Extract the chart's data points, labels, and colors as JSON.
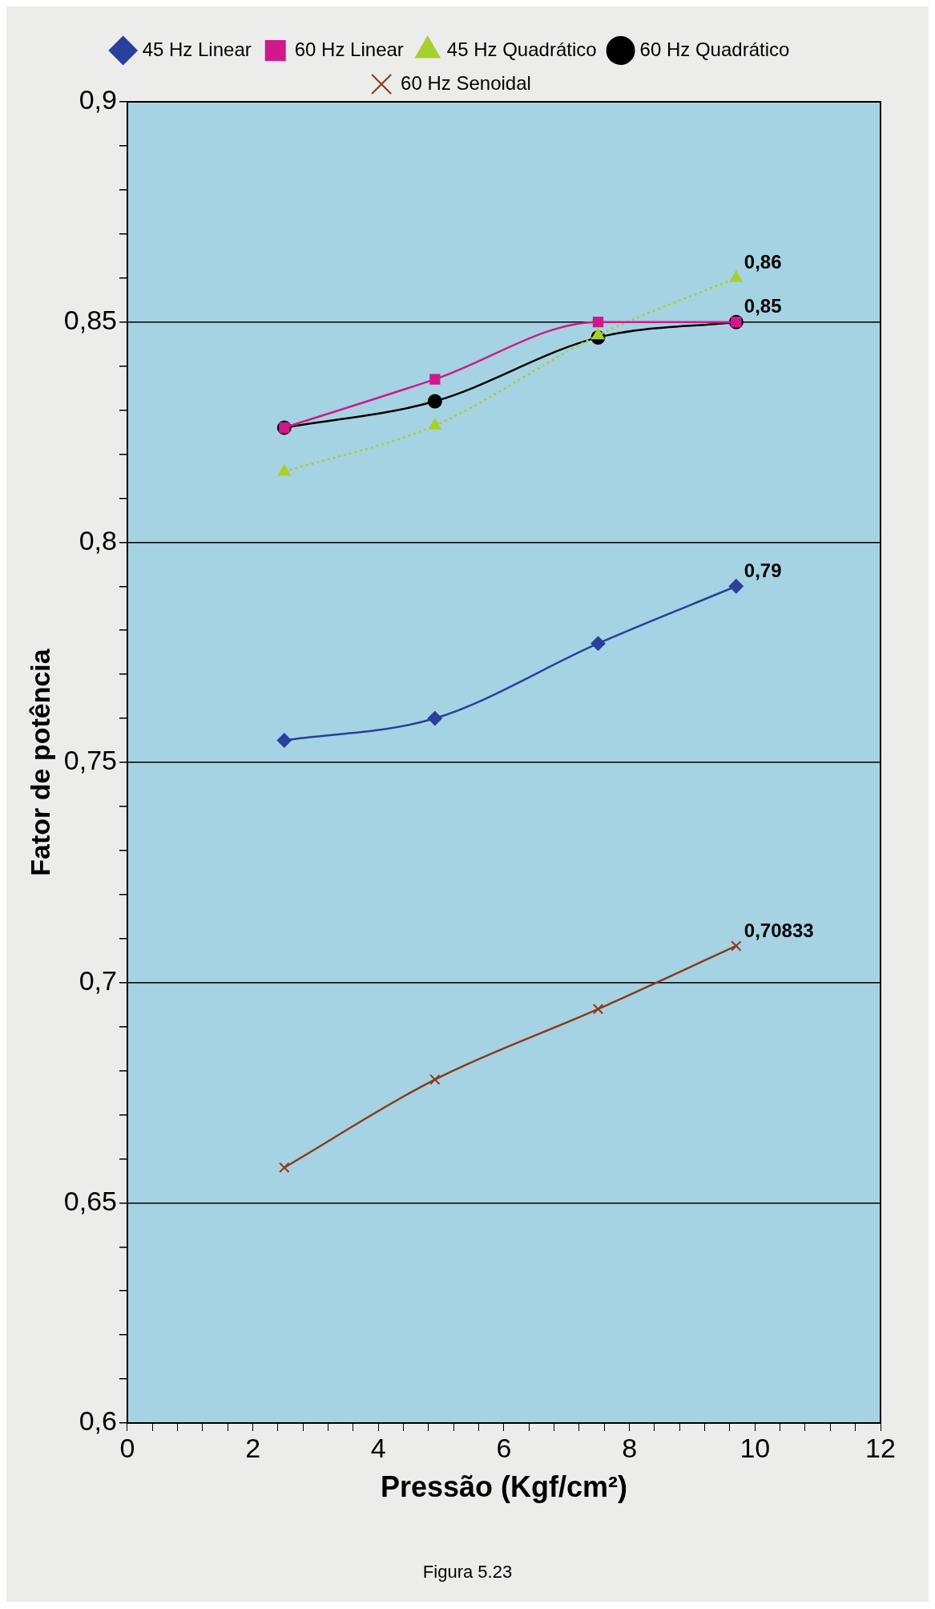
{
  "chart_data": {
    "type": "line",
    "xlabel": "Pressão (Kgf/cm²)",
    "ylabel": "Fator de potência",
    "x": [
      2.5,
      4.9,
      7.5,
      9.7
    ],
    "series": [
      {
        "name": "45 Hz Linear",
        "color": "#2b3f9c",
        "marker": "diamond",
        "line_style": "solid",
        "values": [
          0.755,
          0.76,
          0.777,
          0.79
        ],
        "value_labels": [
          null,
          null,
          null,
          "0,79"
        ]
      },
      {
        "name": "60 Hz Linear",
        "color": "#d0198c",
        "marker": "square",
        "line_style": "solid",
        "values": [
          0.826,
          0.837,
          0.85,
          0.85
        ],
        "value_labels": [
          null,
          null,
          null,
          null
        ]
      },
      {
        "name": "45 Hz Quadrático",
        "color": "#a9cf2e",
        "marker": "triangle",
        "line_style": "dotted",
        "values": [
          0.816,
          0.8265,
          0.847,
          0.86
        ],
        "value_labels": [
          null,
          null,
          null,
          "0,86"
        ]
      },
      {
        "name": "60 Hz Quadrático",
        "color": "#000000",
        "marker": "circle",
        "line_style": "solid",
        "values": [
          0.826,
          0.832,
          0.8465,
          0.85
        ],
        "value_labels": [
          null,
          null,
          null,
          "0,85"
        ]
      },
      {
        "name": "60 Hz Senoidal",
        "color": "#8b3a1a",
        "marker": "cross",
        "line_style": "solid",
        "values": [
          0.658,
          0.678,
          0.694,
          0.70833
        ],
        "value_labels": [
          null,
          null,
          null,
          "0,70833"
        ]
      }
    ],
    "xlim": [
      0,
      12
    ],
    "xticks": [
      0,
      {
        "value": 0.4,
        "label": null
      },
      {
        "value": 0.8,
        "label": null
      },
      {
        "value": 1.2,
        "label": null
      },
      {
        "value": 1.6,
        "label": null
      },
      2,
      {
        "value": 2.4,
        "label": null
      },
      {
        "value": 2.8,
        "label": null
      },
      {
        "value": 3.2,
        "label": null
      },
      {
        "value": 3.6,
        "label": null
      },
      4,
      {
        "value": 4.4,
        "label": null
      },
      {
        "value": 4.8,
        "label": null
      },
      {
        "value": 5.2,
        "label": null
      },
      {
        "value": 5.6,
        "label": null
      },
      6,
      {
        "value": 6.4,
        "label": null
      },
      {
        "value": 6.8,
        "label": null
      },
      {
        "value": 7.2,
        "label": null
      },
      {
        "value": 7.6,
        "label": null
      },
      8,
      {
        "value": 8.4,
        "label": null
      },
      {
        "value": 8.8,
        "label": null
      },
      {
        "value": 9.2,
        "label": null
      },
      {
        "value": 9.6,
        "label": null
      },
      10,
      {
        "value": 10.4,
        "label": null
      },
      {
        "value": 10.8,
        "label": null
      },
      {
        "value": 11.2,
        "label": null
      },
      {
        "value": 11.6,
        "label": null
      },
      12
    ],
    "ylim": [
      0.6,
      0.9
    ],
    "yticks": [
      {
        "value": 0.6,
        "label": "0,6"
      },
      {
        "value": 0.61,
        "label": null
      },
      {
        "value": 0.62,
        "label": null
      },
      {
        "value": 0.63,
        "label": null
      },
      {
        "value": 0.64,
        "label": null
      },
      {
        "value": 0.65,
        "label": "0,65"
      },
      {
        "value": 0.66,
        "label": null
      },
      {
        "value": 0.67,
        "label": null
      },
      {
        "value": 0.68,
        "label": null
      },
      {
        "value": 0.69,
        "label": null
      },
      {
        "value": 0.7,
        "label": "0,7"
      },
      {
        "value": 0.71,
        "label": null
      },
      {
        "value": 0.72,
        "label": null
      },
      {
        "value": 0.73,
        "label": null
      },
      {
        "value": 0.74,
        "label": null
      },
      {
        "value": 0.75,
        "label": "0,75"
      },
      {
        "value": 0.76,
        "label": null
      },
      {
        "value": 0.77,
        "label": null
      },
      {
        "value": 0.78,
        "label": null
      },
      {
        "value": 0.79,
        "label": null
      },
      {
        "value": 0.8,
        "label": "0,8"
      },
      {
        "value": 0.81,
        "label": null
      },
      {
        "value": 0.82,
        "label": null
      },
      {
        "value": 0.83,
        "label": null
      },
      {
        "value": 0.84,
        "label": null
      },
      {
        "value": 0.85,
        "label": "0,85"
      },
      {
        "value": 0.86,
        "label": null
      },
      {
        "value": 0.87,
        "label": null
      },
      {
        "value": 0.88,
        "label": null
      },
      {
        "value": 0.89,
        "label": null
      },
      {
        "value": 0.9,
        "label": "0,9"
      }
    ],
    "grid": "y",
    "legend": "top",
    "annotations": [
      "Figura 5.23"
    ]
  }
}
